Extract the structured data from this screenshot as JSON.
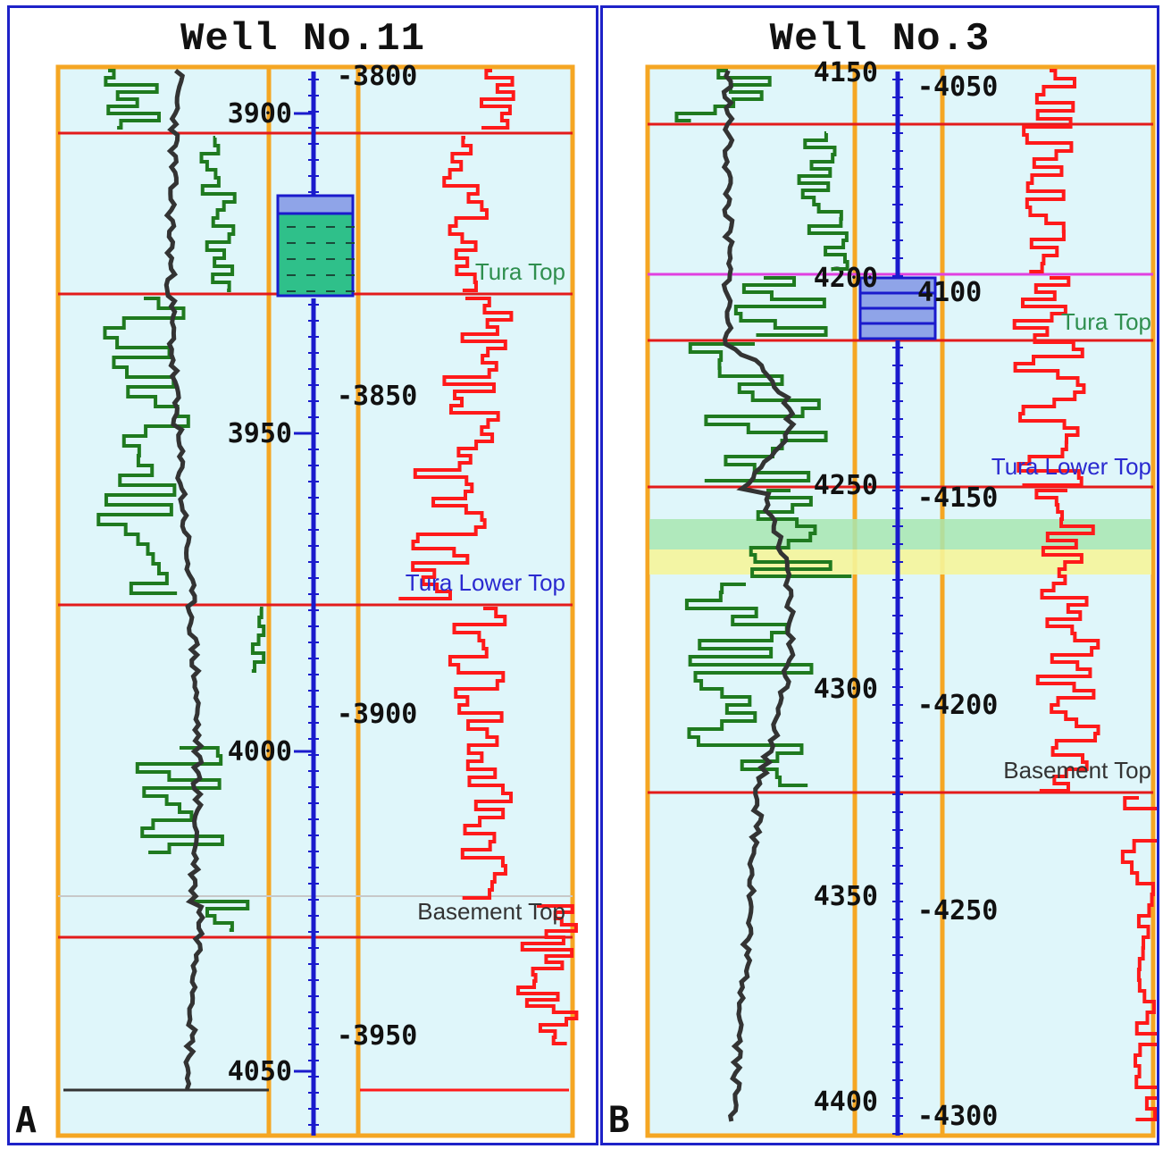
{
  "panels": [
    {
      "title": "Well No.11",
      "letter": "A",
      "md_ticks": [
        "3900",
        "3950",
        "4000",
        "4050"
      ],
      "tvd_ticks": [
        "-3800",
        "-3850",
        "-3900",
        "-3950"
      ],
      "formations": [
        "Tura Top",
        "Tura Lower Top",
        "Basement Top"
      ]
    },
    {
      "title": "Well No.3",
      "letter": "B",
      "md_ticks": [
        "4150",
        "4200",
        "4250",
        "4300",
        "4350",
        "4400"
      ],
      "tvd_ticks": [
        "-4050",
        "4100",
        "-4150",
        "-4200",
        "-4250",
        "-4300"
      ],
      "formations": [
        "Tura Top",
        "Tura Lower Top",
        "Basement Top"
      ]
    }
  ],
  "colors": {
    "frame": "#1e22c8",
    "track_border": "#f5a623",
    "track_fill": "#dff6fa",
    "gamma": "#1f7a1f",
    "resistivity": "#ff1a1a",
    "caliper": "#333333",
    "top_line": "#e31b1b",
    "depth_axis": "#1a1acc",
    "lith_green": "#2fc08a",
    "lith_blue": "#8fa4e8",
    "pink_line": "#e040e0",
    "zone_green": "#a8e6b0",
    "zone_yellow": "#f5f59a"
  },
  "icons": {
    "depth_axis": "depth-scale-icon",
    "limestone": "limestone-pattern-icon",
    "shale": "shale-pattern-icon"
  }
}
